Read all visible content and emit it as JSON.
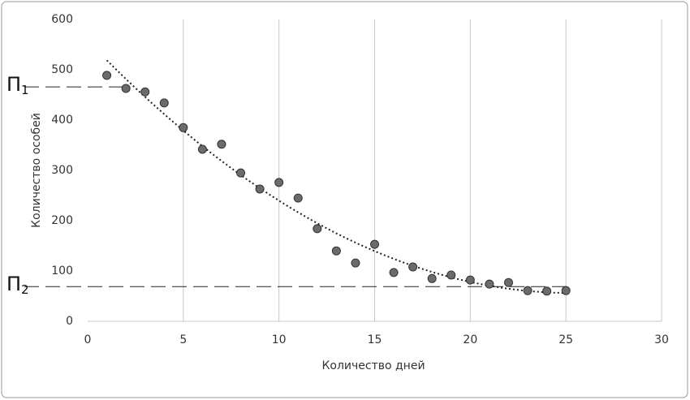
{
  "chart_data": {
    "type": "scatter",
    "x_label": "Количество дней",
    "y_label": "Количество особей",
    "x": [
      1,
      2,
      3,
      4,
      5,
      6,
      7,
      8,
      9,
      10,
      11,
      12,
      13,
      14,
      15,
      16,
      17,
      18,
      19,
      20,
      21,
      22,
      23,
      24,
      25
    ],
    "series": [
      {
        "color": "#6b6b6b",
        "values": [
          489,
          463,
          456,
          434,
          385,
          342,
          352,
          295,
          263,
          276,
          245,
          184,
          140,
          116,
          153,
          97,
          108,
          85,
          92,
          82,
          74,
          77,
          61,
          60,
          61
        ]
      }
    ],
    "trendline": "polynomial",
    "reference_lines": [
      {
        "label": "П",
        "subscript": "1",
        "value": 466
      },
      {
        "label": "П",
        "subscript": "2",
        "value": 69
      }
    ],
    "xlim": [
      0,
      30
    ],
    "xticks": [
      0,
      5,
      10,
      15,
      20,
      25,
      30
    ],
    "ylim": [
      0,
      600
    ],
    "yticks": [
      0,
      100,
      200,
      300,
      400,
      500,
      600
    ],
    "grid": "x"
  }
}
